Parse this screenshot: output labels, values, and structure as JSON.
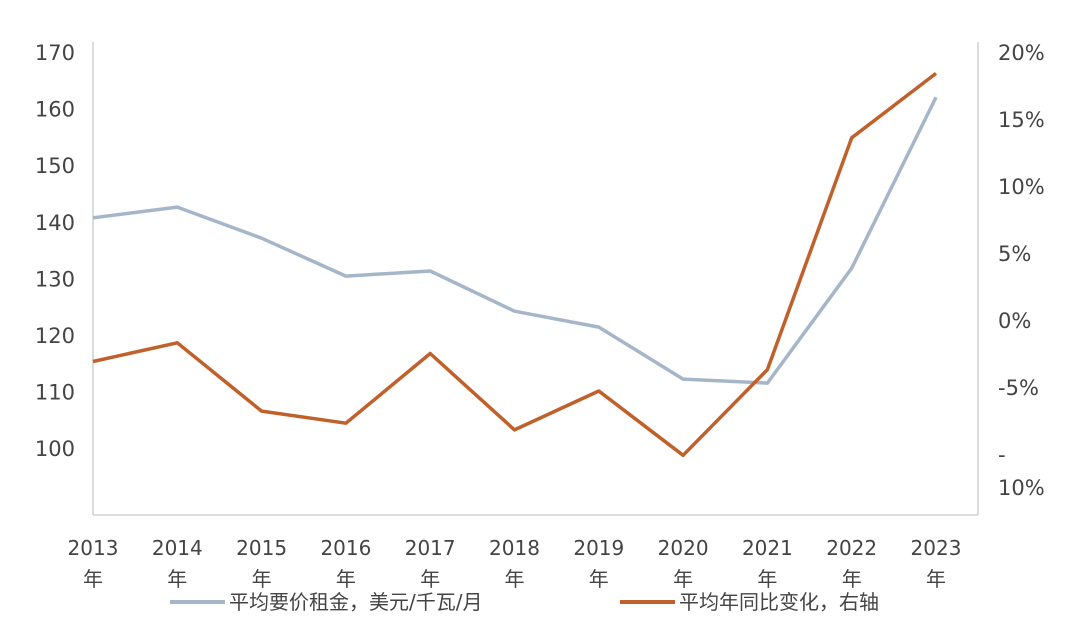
{
  "chart_data": {
    "type": "line",
    "title": "",
    "categories": [
      "2013\n年",
      "2014\n年",
      "2015\n年",
      "2016\n年",
      "2017\n年",
      "2018\n年",
      "2019\n年",
      "2020\n年",
      "2021\n年",
      "2022\n年",
      "2023\n年"
    ],
    "series": [
      {
        "name": "平均要价租金，美元/千瓦/月",
        "axis": "left",
        "color": "#a6b6c9",
        "values": [
          140.7,
          142.6,
          137.1,
          130.4,
          131.3,
          124.2,
          121.4,
          112.2,
          111.5,
          131.8,
          162.0
        ]
      },
      {
        "name": "平均年同比变化，右轴",
        "axis": "right",
        "color": "#c0602a",
        "values": [
          -3.1,
          -1.7,
          -6.8,
          -7.7,
          -2.5,
          -8.2,
          -5.3,
          -10.1,
          -3.7,
          13.6,
          18.4
        ]
      }
    ],
    "left_axis": {
      "ylim": [
        88,
        170
      ],
      "ticks": [
        100,
        110,
        120,
        130,
        140,
        150,
        160,
        170
      ],
      "tick_labels": [
        "100",
        "110",
        "120",
        "130",
        "140",
        "150",
        "160",
        "170"
      ]
    },
    "right_axis": {
      "ylim": [
        -14.5,
        20
      ],
      "ticks": [
        -10,
        -5,
        0,
        5,
        10,
        15,
        20
      ],
      "tick_labels": [
        "-\n10%",
        "-5%",
        "0%",
        "5%",
        "10%",
        "15%",
        "20%"
      ]
    },
    "grid": false,
    "legend": "bottom"
  }
}
